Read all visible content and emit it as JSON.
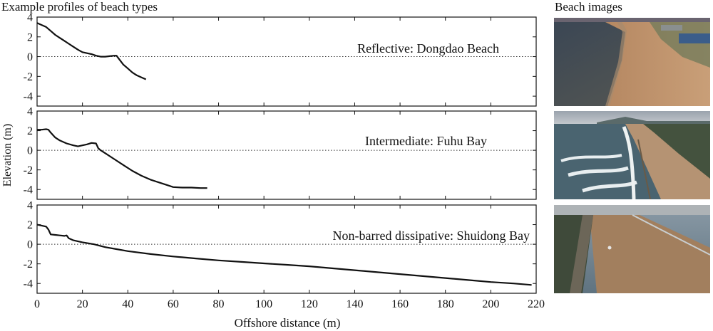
{
  "titles": {
    "left": "Example profiles of beach types",
    "right": "Beach images"
  },
  "colors": {
    "profile": "#111111",
    "zero_line": "#333333",
    "axes": "#111111"
  },
  "chart_data": {
    "type": "line",
    "xlabel": "Offshore distance (m)",
    "ylabel": "Elevation (m)",
    "xlim": [
      0,
      220
    ],
    "ylim": [
      -5,
      4
    ],
    "x_ticks": [
      0,
      20,
      40,
      60,
      80,
      100,
      120,
      140,
      160,
      180,
      200,
      220
    ],
    "y_ticks": [
      -4,
      -2,
      0,
      2,
      4
    ],
    "grid": false,
    "reference_line": {
      "y": 0,
      "style": "dotted"
    },
    "panels": [
      {
        "label": "Reflective: Dongdao Beach",
        "series": [
          {
            "x": [
              0,
              2,
              4,
              6,
              8,
              10,
              12,
              14,
              16,
              18,
              20,
              22,
              24,
              26,
              28,
              30,
              32,
              34,
              35,
              36,
              38,
              40,
              42,
              44,
              46,
              48
            ],
            "y": [
              3.4,
              3.2,
              3.0,
              2.6,
              2.2,
              1.9,
              1.6,
              1.3,
              1.0,
              0.7,
              0.45,
              0.35,
              0.25,
              0.1,
              0.0,
              0.0,
              0.05,
              0.1,
              0.1,
              -0.2,
              -0.8,
              -1.2,
              -1.6,
              -1.9,
              -2.1,
              -2.3
            ]
          }
        ]
      },
      {
        "label": "Intermediate: Fuhu Bay",
        "series": [
          {
            "x": [
              0,
              2,
              4,
              5,
              6,
              8,
              10,
              13,
              16,
              18,
              20,
              22,
              24,
              26,
              27,
              28,
              30,
              34,
              38,
              42,
              46,
              50,
              54,
              58,
              60,
              64,
              68,
              72,
              75
            ],
            "y": [
              2.1,
              2.1,
              2.15,
              2.1,
              1.8,
              1.3,
              1.0,
              0.7,
              0.5,
              0.4,
              0.5,
              0.6,
              0.75,
              0.7,
              0.2,
              0.0,
              -0.3,
              -0.9,
              -1.5,
              -2.1,
              -2.6,
              -3.0,
              -3.3,
              -3.6,
              -3.75,
              -3.8,
              -3.8,
              -3.85,
              -3.85
            ]
          }
        ]
      },
      {
        "label": "Non-barred dissipative: Shuidong Bay",
        "series": [
          {
            "x": [
              0,
              2,
              4,
              5,
              6,
              8,
              10,
              12,
              13,
              14,
              16,
              20,
              25,
              30,
              35,
              40,
              50,
              60,
              70,
              80,
              90,
              100,
              110,
              120,
              130,
              140,
              150,
              160,
              170,
              180,
              190,
              200,
              210,
              218
            ],
            "y": [
              2.0,
              1.9,
              1.8,
              1.5,
              1.0,
              0.95,
              0.9,
              0.85,
              0.9,
              0.6,
              0.4,
              0.2,
              0.0,
              -0.3,
              -0.5,
              -0.7,
              -1.0,
              -1.25,
              -1.45,
              -1.65,
              -1.8,
              -1.95,
              -2.1,
              -2.25,
              -2.45,
              -2.65,
              -2.85,
              -3.05,
              -3.25,
              -3.45,
              -3.65,
              -3.85,
              -4.0,
              -4.15
            ]
          }
        ]
      }
    ]
  },
  "photos": [
    {
      "name": "dongdao-beach-photo"
    },
    {
      "name": "fuhu-bay-photo"
    },
    {
      "name": "shuidong-bay-photo"
    }
  ]
}
